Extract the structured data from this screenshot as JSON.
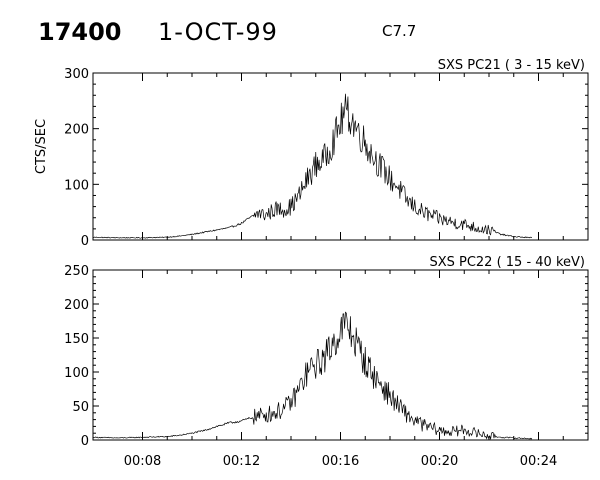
{
  "header": {
    "event_id": "17400",
    "date": "1-OCT-99",
    "flare_class": "C7.7"
  },
  "chart_data": [
    {
      "type": "line",
      "title": "SXS PC21 ( 3 - 15 keV)",
      "xlabel": "",
      "ylabel": "CTS/SEC",
      "xlim": [
        "00:06:00",
        "00:26:00"
      ],
      "ylim": [
        0,
        300
      ],
      "xticks": [],
      "xtick_values": [
        "00:08",
        "00:12",
        "00:16",
        "00:20",
        "00:24"
      ],
      "yticks": [
        "0",
        "100",
        "200",
        "300"
      ],
      "ytick_values": [
        0,
        100,
        200,
        300
      ],
      "grid": false,
      "series": [
        {
          "x": [
            "00:06:00",
            "00:07:00",
            "00:08:00",
            "00:09:00",
            "00:09:30",
            "00:10:00",
            "00:10:30",
            "00:11:00",
            "00:11:30",
            "00:12:00",
            "00:12:20",
            "00:12:40",
            "00:13:00",
            "00:13:20",
            "00:13:40",
            "00:14:00",
            "00:14:20",
            "00:14:40",
            "00:15:00",
            "00:15:20",
            "00:15:40",
            "00:16:00",
            "00:16:10",
            "00:16:20",
            "00:16:40",
            "00:17:00",
            "00:17:20",
            "00:17:40",
            "00:18:00",
            "00:18:20",
            "00:18:40",
            "00:19:00",
            "00:19:20",
            "00:19:40",
            "00:20:00",
            "00:20:30",
            "00:21:00",
            "00:21:30",
            "00:22:00",
            "00:22:30",
            "00:23:00",
            "00:23:45"
          ],
          "values": [
            5,
            4,
            4,
            5,
            7,
            10,
            14,
            18,
            22,
            30,
            40,
            48,
            45,
            55,
            55,
            60,
            80,
            110,
            135,
            145,
            175,
            210,
            230,
            225,
            200,
            175,
            150,
            130,
            110,
            95,
            72,
            60,
            50,
            43,
            38,
            32,
            28,
            22,
            18,
            10,
            6,
            4
          ]
        }
      ]
    },
    {
      "type": "line",
      "title": "SXS PC22 ( 15 - 40 keV)",
      "xlabel": "",
      "ylabel": "",
      "xlim": [
        "00:06:00",
        "00:26:00"
      ],
      "ylim": [
        0,
        250
      ],
      "xticks": [
        "00:08",
        "00:12",
        "00:16",
        "00:20",
        "00:24"
      ],
      "xtick_values": [
        "00:08",
        "00:12",
        "00:16",
        "00:20",
        "00:24"
      ],
      "yticks": [
        "0",
        "50",
        "100",
        "150",
        "200",
        "250"
      ],
      "ytick_values": [
        0,
        50,
        100,
        150,
        200,
        250
      ],
      "grid": false,
      "series": [
        {
          "x": [
            "00:06:00",
            "00:07:00",
            "00:08:00",
            "00:09:00",
            "00:09:30",
            "00:10:00",
            "00:10:30",
            "00:11:00",
            "00:11:30",
            "00:12:00",
            "00:12:20",
            "00:12:40",
            "00:13:00",
            "00:13:20",
            "00:13:40",
            "00:14:00",
            "00:14:20",
            "00:14:40",
            "00:15:00",
            "00:15:20",
            "00:15:40",
            "00:16:00",
            "00:16:10",
            "00:16:20",
            "00:16:40",
            "00:17:00",
            "00:17:20",
            "00:17:40",
            "00:18:00",
            "00:18:20",
            "00:18:40",
            "00:19:00",
            "00:19:20",
            "00:19:40",
            "00:20:00",
            "00:20:30",
            "00:21:00",
            "00:21:30",
            "00:22:00",
            "00:22:30",
            "00:23:00",
            "00:23:45"
          ],
          "values": [
            4,
            3,
            4,
            5,
            7,
            10,
            14,
            20,
            25,
            28,
            32,
            35,
            38,
            40,
            45,
            55,
            75,
            100,
            110,
            120,
            140,
            160,
            170,
            165,
            140,
            115,
            95,
            80,
            65,
            50,
            38,
            28,
            22,
            18,
            14,
            12,
            15,
            10,
            6,
            4,
            3,
            2
          ]
        }
      ]
    }
  ]
}
